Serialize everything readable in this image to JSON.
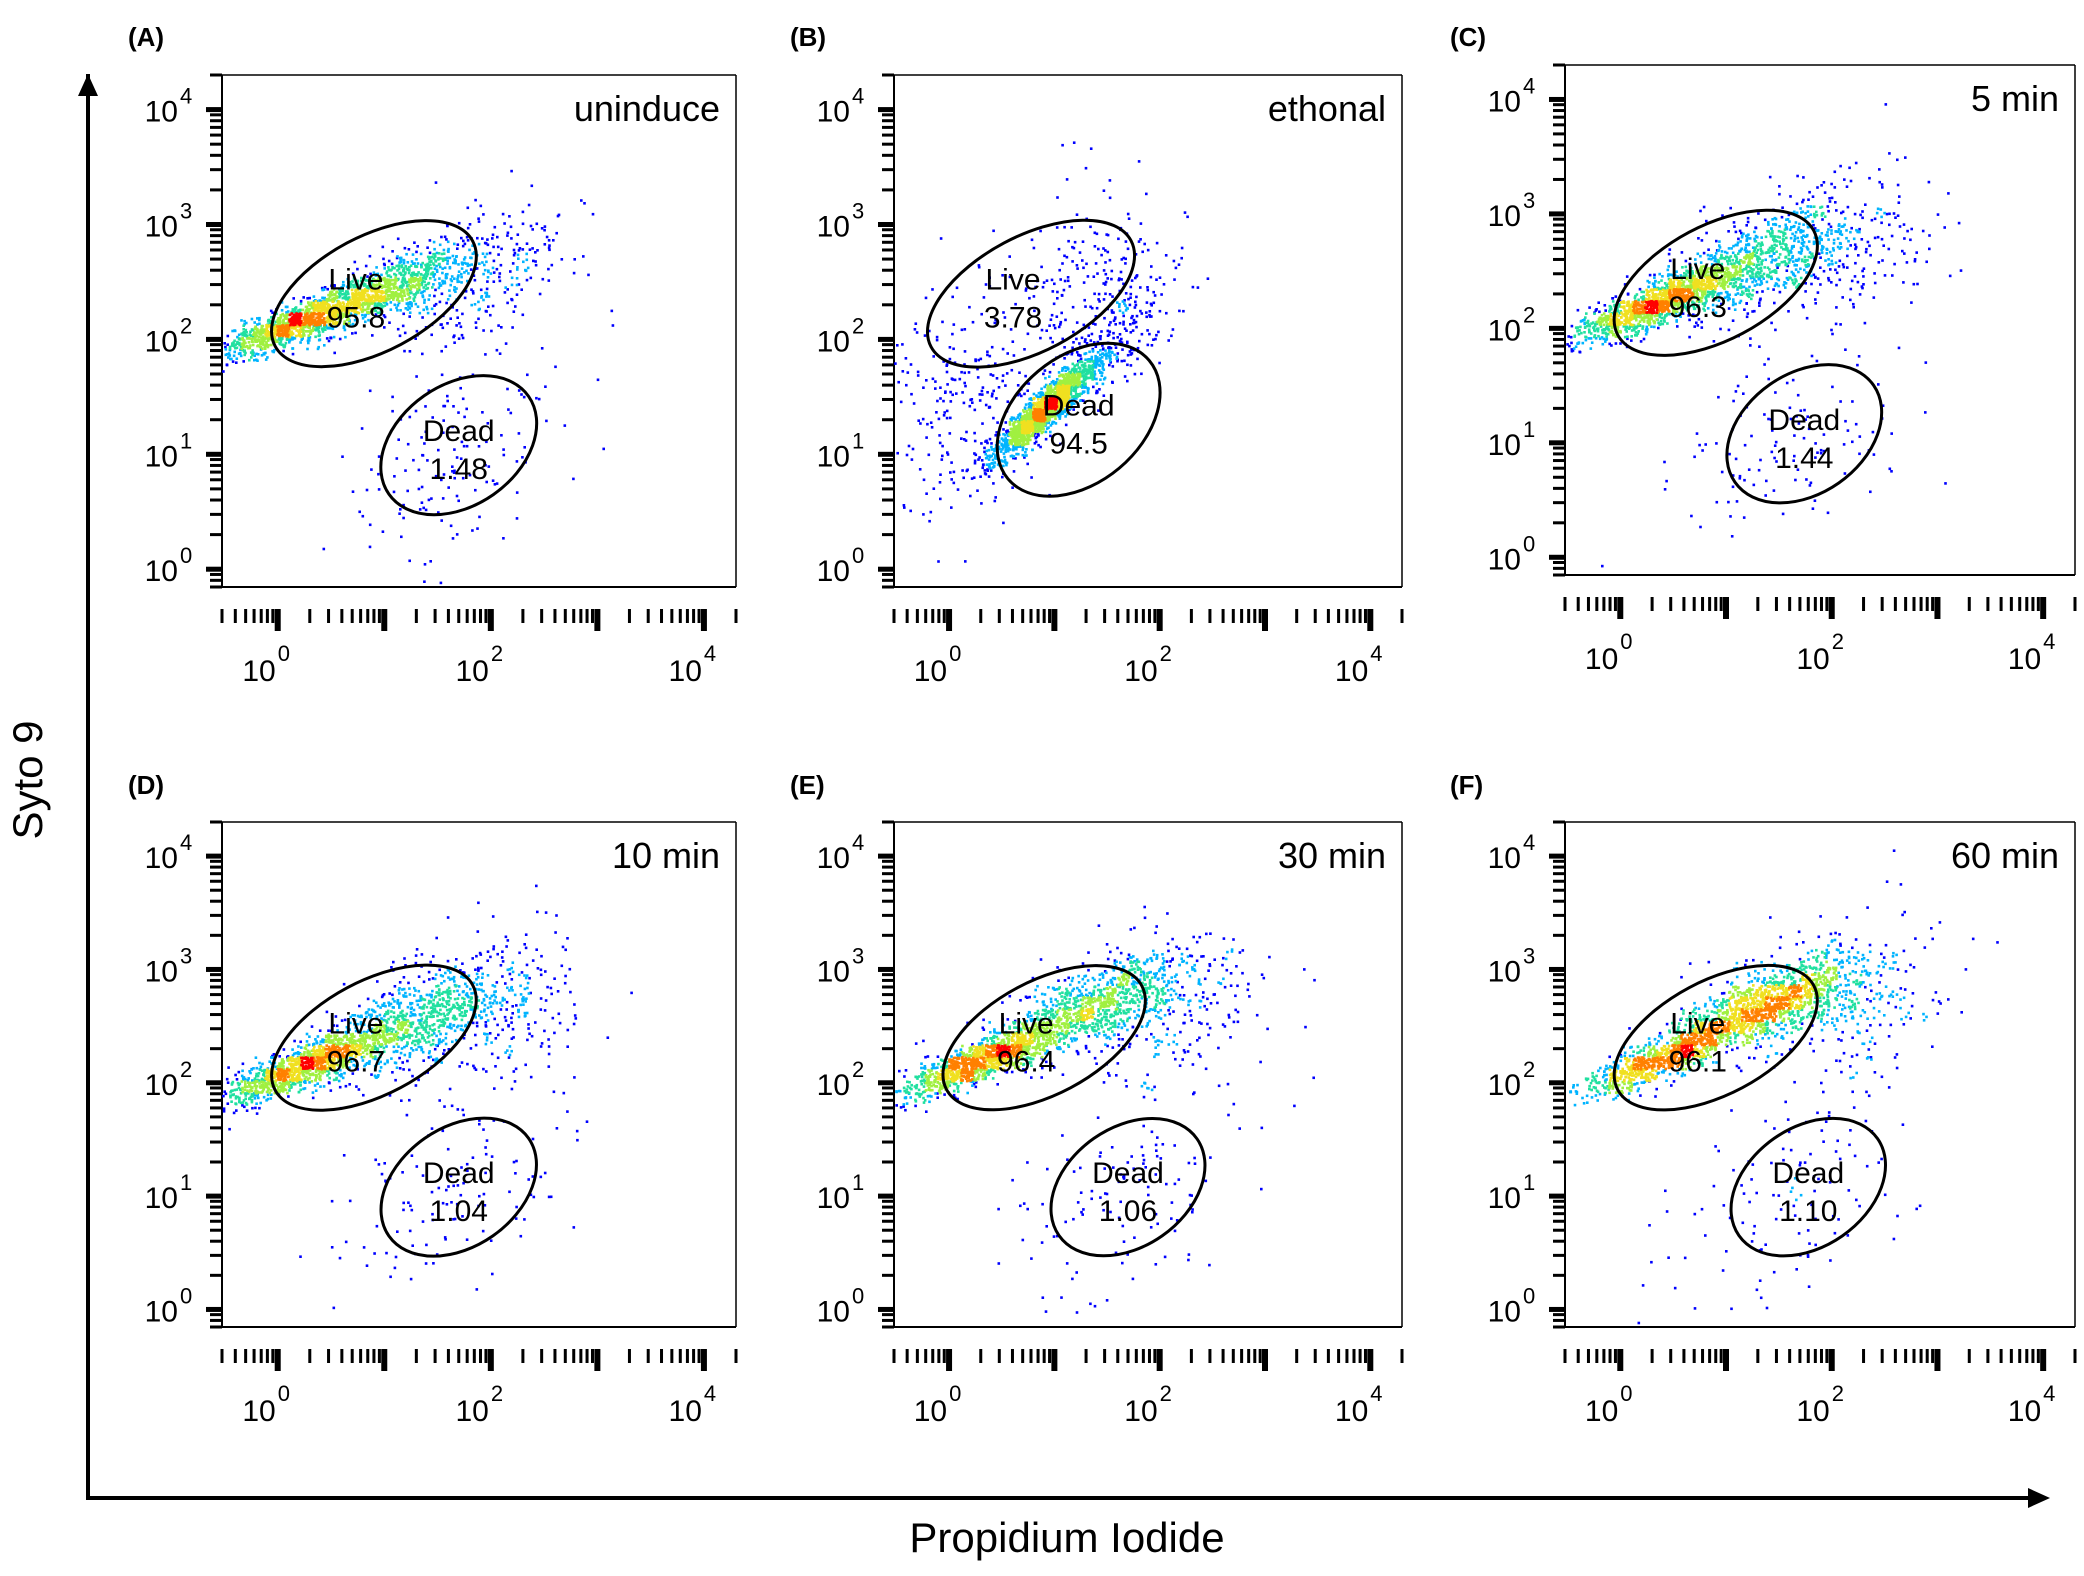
{
  "figure": {
    "ylabel": "Syto 9",
    "xlabel": "Propidium Iodide",
    "colors": {
      "axis": "#000000",
      "gate": "#000000",
      "low_density": "#0000ff",
      "density_ramp": [
        "#0000ff",
        "#00b4ff",
        "#20e0a0",
        "#a0f040",
        "#f0e020",
        "#ff8000",
        "#ff0000"
      ]
    }
  },
  "chart_data": [
    {
      "type": "scatter",
      "panel_label": "(A)",
      "condition": "uninduce",
      "x_scale": "log",
      "y_scale": "log",
      "xlim": [
        0.3,
        20000
      ],
      "ylim": [
        0.7,
        20000
      ],
      "x_ticks": [
        {
          "mantissa": "10",
          "exp": "0",
          "value": 1
        },
        {
          "mantissa": "10",
          "exp": "2",
          "value": 100
        },
        {
          "mantissa": "10",
          "exp": "4",
          "value": 10000
        }
      ],
      "y_ticks": [
        {
          "mantissa": "10",
          "exp": "0",
          "value": 1
        },
        {
          "mantissa": "10",
          "exp": "1",
          "value": 10
        },
        {
          "mantissa": "10",
          "exp": "2",
          "value": 100
        },
        {
          "mantissa": "10",
          "exp": "3",
          "value": 1000
        },
        {
          "mantissa": "10",
          "exp": "4",
          "value": 10000
        }
      ],
      "gates": [
        {
          "name": "Live",
          "percent": "95.8",
          "center": [
            8,
            250
          ],
          "span_log": [
            2.1,
            1.0
          ],
          "tilt_deg": 28
        },
        {
          "name": "Dead",
          "percent": "1.48",
          "center": [
            50,
            12
          ],
          "span_log": [
            1.6,
            1.05
          ],
          "tilt_deg": 35
        }
      ],
      "populations": [
        {
          "center": [
            1.8,
            150
          ],
          "spread_log": [
            0.42,
            0.16
          ],
          "corr": 0.85,
          "weight": 0.55
        },
        {
          "center": [
            12,
            300
          ],
          "spread_log": [
            0.35,
            0.16
          ],
          "corr": 0.7,
          "weight": 0.25
        },
        {
          "center": [
            40,
            10
          ],
          "spread_log": [
            0.5,
            0.45
          ],
          "corr": 0.4,
          "weight": 0.06
        },
        {
          "center": [
            60,
            350
          ],
          "spread_log": [
            0.45,
            0.3
          ],
          "corr": 0.3,
          "weight": 0.14
        }
      ]
    },
    {
      "type": "scatter",
      "panel_label": "(B)",
      "condition": "ethonal",
      "x_scale": "log",
      "y_scale": "log",
      "xlim": [
        0.3,
        20000
      ],
      "ylim": [
        0.7,
        20000
      ],
      "x_ticks": [
        {
          "mantissa": "10",
          "exp": "0",
          "value": 1
        },
        {
          "mantissa": "10",
          "exp": "2",
          "value": 100
        },
        {
          "mantissa": "10",
          "exp": "4",
          "value": 10000
        }
      ],
      "y_ticks": [
        {
          "mantissa": "10",
          "exp": "0",
          "value": 1
        },
        {
          "mantissa": "10",
          "exp": "1",
          "value": 10
        },
        {
          "mantissa": "10",
          "exp": "2",
          "value": 100
        },
        {
          "mantissa": "10",
          "exp": "3",
          "value": 1000
        },
        {
          "mantissa": "10",
          "exp": "4",
          "value": 10000
        }
      ],
      "gates": [
        {
          "name": "Live",
          "percent": "3.78",
          "center": [
            6,
            250
          ],
          "span_log": [
            2.15,
            1.0
          ],
          "tilt_deg": 28
        },
        {
          "name": "Dead",
          "percent": "94.5",
          "center": [
            17,
            20
          ],
          "span_log": [
            1.75,
            1.1
          ],
          "tilt_deg": 40
        }
      ],
      "populations": [
        {
          "center": [
            8,
            25
          ],
          "spread_log": [
            0.25,
            0.22
          ],
          "corr": 0.92,
          "weight": 0.7
        },
        {
          "center": [
            30,
            80
          ],
          "spread_log": [
            0.3,
            0.3
          ],
          "corr": 0.7,
          "weight": 0.1
        },
        {
          "center": [
            1.5,
            30
          ],
          "spread_log": [
            0.5,
            0.55
          ],
          "corr": 0.2,
          "weight": 0.12
        },
        {
          "center": [
            25,
            350
          ],
          "spread_log": [
            0.4,
            0.4
          ],
          "corr": 0.2,
          "weight": 0.08
        }
      ]
    },
    {
      "type": "scatter",
      "panel_label": "(C)",
      "condition": "5 min",
      "x_scale": "log",
      "y_scale": "log",
      "xlim": [
        0.3,
        20000
      ],
      "ylim": [
        0.7,
        20000
      ],
      "x_ticks": [
        {
          "mantissa": "10",
          "exp": "0",
          "value": 1
        },
        {
          "mantissa": "10",
          "exp": "2",
          "value": 100
        },
        {
          "mantissa": "10",
          "exp": "4",
          "value": 10000
        }
      ],
      "y_ticks": [
        {
          "mantissa": "10",
          "exp": "0",
          "value": 1
        },
        {
          "mantissa": "10",
          "exp": "1",
          "value": 10
        },
        {
          "mantissa": "10",
          "exp": "2",
          "value": 100
        },
        {
          "mantissa": "10",
          "exp": "3",
          "value": 1000
        },
        {
          "mantissa": "10",
          "exp": "4",
          "value": 10000
        }
      ],
      "gates": [
        {
          "name": "Live",
          "percent": "96.3",
          "center": [
            8,
            250
          ],
          "span_log": [
            2.1,
            1.0
          ],
          "tilt_deg": 28
        },
        {
          "name": "Dead",
          "percent": "1.44",
          "center": [
            55,
            12
          ],
          "span_log": [
            1.6,
            1.05
          ],
          "tilt_deg": 35
        }
      ],
      "populations": [
        {
          "center": [
            2.2,
            170
          ],
          "spread_log": [
            0.42,
            0.18
          ],
          "corr": 0.85,
          "weight": 0.55
        },
        {
          "center": [
            20,
            400
          ],
          "spread_log": [
            0.45,
            0.25
          ],
          "corr": 0.6,
          "weight": 0.3
        },
        {
          "center": [
            40,
            10
          ],
          "spread_log": [
            0.55,
            0.45
          ],
          "corr": 0.4,
          "weight": 0.05
        },
        {
          "center": [
            90,
            500
          ],
          "spread_log": [
            0.5,
            0.35
          ],
          "corr": 0.2,
          "weight": 0.1
        }
      ]
    },
    {
      "type": "scatter",
      "panel_label": "(D)",
      "condition": "10 min",
      "x_scale": "log",
      "y_scale": "log",
      "xlim": [
        0.3,
        20000
      ],
      "ylim": [
        0.7,
        20000
      ],
      "x_ticks": [
        {
          "mantissa": "10",
          "exp": "0",
          "value": 1
        },
        {
          "mantissa": "10",
          "exp": "2",
          "value": 100
        },
        {
          "mantissa": "10",
          "exp": "4",
          "value": 10000
        }
      ],
      "y_ticks": [
        {
          "mantissa": "10",
          "exp": "0",
          "value": 1
        },
        {
          "mantissa": "10",
          "exp": "1",
          "value": 10
        },
        {
          "mantissa": "10",
          "exp": "2",
          "value": 100
        },
        {
          "mantissa": "10",
          "exp": "3",
          "value": 1000
        },
        {
          "mantissa": "10",
          "exp": "4",
          "value": 10000
        }
      ],
      "gates": [
        {
          "name": "Live",
          "percent": "96.7",
          "center": [
            8,
            250
          ],
          "span_log": [
            2.1,
            1.0
          ],
          "tilt_deg": 28
        },
        {
          "name": "Dead",
          "percent": "1.04",
          "center": [
            50,
            12
          ],
          "span_log": [
            1.6,
            1.05
          ],
          "tilt_deg": 35
        }
      ],
      "populations": [
        {
          "center": [
            2.0,
            150
          ],
          "spread_log": [
            0.42,
            0.18
          ],
          "corr": 0.85,
          "weight": 0.55
        },
        {
          "center": [
            18,
            350
          ],
          "spread_log": [
            0.45,
            0.25
          ],
          "corr": 0.6,
          "weight": 0.28
        },
        {
          "center": [
            35,
            10
          ],
          "spread_log": [
            0.55,
            0.45
          ],
          "corr": 0.4,
          "weight": 0.05
        },
        {
          "center": [
            90,
            450
          ],
          "spread_log": [
            0.5,
            0.35
          ],
          "corr": 0.2,
          "weight": 0.12
        }
      ]
    },
    {
      "type": "scatter",
      "panel_label": "(E)",
      "condition": "30 min",
      "x_scale": "log",
      "y_scale": "log",
      "xlim": [
        0.3,
        20000
      ],
      "ylim": [
        0.7,
        20000
      ],
      "x_ticks": [
        {
          "mantissa": "10",
          "exp": "0",
          "value": 1
        },
        {
          "mantissa": "10",
          "exp": "2",
          "value": 100
        },
        {
          "mantissa": "10",
          "exp": "4",
          "value": 10000
        }
      ],
      "y_ticks": [
        {
          "mantissa": "10",
          "exp": "0",
          "value": 1
        },
        {
          "mantissa": "10",
          "exp": "1",
          "value": 10
        },
        {
          "mantissa": "10",
          "exp": "2",
          "value": 100
        },
        {
          "mantissa": "10",
          "exp": "3",
          "value": 1000
        },
        {
          "mantissa": "10",
          "exp": "4",
          "value": 10000
        }
      ],
      "gates": [
        {
          "name": "Live",
          "percent": "96.4",
          "center": [
            8,
            250
          ],
          "span_log": [
            2.1,
            1.0
          ],
          "tilt_deg": 28
        },
        {
          "name": "Dead",
          "percent": "1.06",
          "center": [
            50,
            12
          ],
          "span_log": [
            1.6,
            1.05
          ],
          "tilt_deg": 35
        }
      ],
      "populations": [
        {
          "center": [
            2.0,
            160
          ],
          "spread_log": [
            0.4,
            0.17
          ],
          "corr": 0.85,
          "weight": 0.45
        },
        {
          "center": [
            20,
            450
          ],
          "spread_log": [
            0.45,
            0.22
          ],
          "corr": 0.7,
          "weight": 0.38
        },
        {
          "center": [
            35,
            10
          ],
          "spread_log": [
            0.55,
            0.45
          ],
          "corr": 0.4,
          "weight": 0.05
        },
        {
          "center": [
            100,
            500
          ],
          "spread_log": [
            0.5,
            0.35
          ],
          "corr": 0.2,
          "weight": 0.12
        }
      ]
    },
    {
      "type": "scatter",
      "panel_label": "(F)",
      "condition": "60 min",
      "x_scale": "log",
      "y_scale": "log",
      "xlim": [
        0.3,
        20000
      ],
      "ylim": [
        0.7,
        20000
      ],
      "x_ticks": [
        {
          "mantissa": "10",
          "exp": "0",
          "value": 1
        },
        {
          "mantissa": "10",
          "exp": "2",
          "value": 100
        },
        {
          "mantissa": "10",
          "exp": "4",
          "value": 10000
        }
      ],
      "y_ticks": [
        {
          "mantissa": "10",
          "exp": "0",
          "value": 1
        },
        {
          "mantissa": "10",
          "exp": "1",
          "value": 10
        },
        {
          "mantissa": "10",
          "exp": "2",
          "value": 100
        },
        {
          "mantissa": "10",
          "exp": "3",
          "value": 1000
        },
        {
          "mantissa": "10",
          "exp": "4",
          "value": 10000
        }
      ],
      "gates": [
        {
          "name": "Live",
          "percent": "96.1",
          "center": [
            8,
            250
          ],
          "span_log": [
            2.1,
            1.0
          ],
          "tilt_deg": 28
        },
        {
          "name": "Dead",
          "percent": "1.10",
          "center": [
            60,
            12
          ],
          "span_log": [
            1.6,
            1.05
          ],
          "tilt_deg": 35
        }
      ],
      "populations": [
        {
          "center": [
            2.5,
            170
          ],
          "spread_log": [
            0.4,
            0.17
          ],
          "corr": 0.85,
          "weight": 0.35
        },
        {
          "center": [
            25,
            500
          ],
          "spread_log": [
            0.45,
            0.2
          ],
          "corr": 0.7,
          "weight": 0.48
        },
        {
          "center": [
            40,
            10
          ],
          "spread_log": [
            0.55,
            0.45
          ],
          "corr": 0.4,
          "weight": 0.05
        },
        {
          "center": [
            110,
            550
          ],
          "spread_log": [
            0.5,
            0.35
          ],
          "corr": 0.2,
          "weight": 0.12
        }
      ]
    }
  ]
}
